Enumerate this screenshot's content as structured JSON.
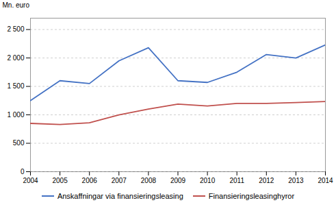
{
  "chart_data": {
    "type": "line",
    "x": [
      2004,
      2005,
      2006,
      2007,
      2008,
      2009,
      2010,
      2011,
      2012,
      2013,
      2014
    ],
    "series": [
      {
        "name": "Anskaffningar via finansieringsleasing",
        "color": "#4472C4",
        "values": [
          1250,
          1600,
          1550,
          1950,
          2180,
          1600,
          1570,
          1750,
          2060,
          2000,
          2230
        ]
      },
      {
        "name": "Finansieringsleasinghyror",
        "color": "#C0504D",
        "values": [
          850,
          830,
          860,
          1000,
          1100,
          1190,
          1155,
          1200,
          1200,
          1215,
          1235
        ]
      }
    ],
    "y_label": "Mn. euro",
    "xlim": [
      2004,
      2014
    ],
    "xticks": [
      2004,
      2005,
      2006,
      2007,
      2008,
      2009,
      2010,
      2011,
      2012,
      2013,
      2014
    ],
    "ylim": [
      0,
      2700
    ],
    "yticks": [
      0,
      500,
      {
        "value": 1000,
        "label": "1 000"
      },
      {
        "value": 1500,
        "label": "1 500"
      },
      {
        "value": 2000,
        "label": "2 000"
      },
      {
        "value": 2500,
        "label": "2 500"
      }
    ],
    "grid": true,
    "legend": "bottom"
  }
}
